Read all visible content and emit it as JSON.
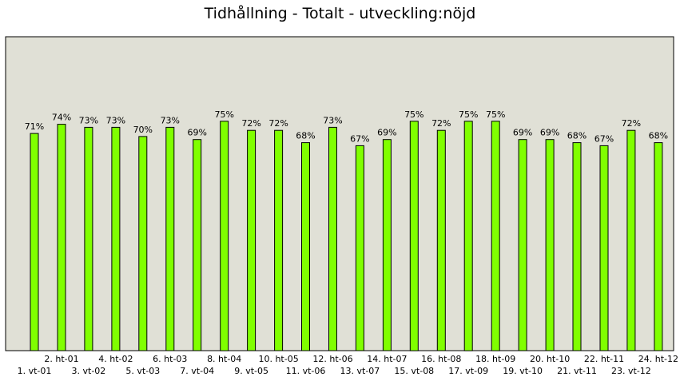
{
  "chart_data": {
    "type": "bar",
    "title": "Tidhållning - Totalt - utveckling:nöjd",
    "xlabel": "",
    "ylabel": "",
    "ylim": [
      0,
      100
    ],
    "grid": false,
    "legend": "none",
    "bar_color": "#80ff00",
    "plot_background": "#e0e0d6",
    "categories": [
      "1. vt-01",
      "2. ht-01",
      "3. vt-02",
      "4. ht-02",
      "5. vt-03",
      "6. ht-03",
      "7. vt-04",
      "8. ht-04",
      "9. vt-05",
      "10. ht-05",
      "11. vt-06",
      "12. ht-06",
      "13. vt-07",
      "14. ht-07",
      "15. vt-08",
      "16. ht-08",
      "17. vt-09",
      "18. ht-09",
      "19. vt-10",
      "20. ht-10",
      "21. vt-11",
      "22. ht-11",
      "23. vt-12",
      "24. ht-12"
    ],
    "values": [
      71,
      74,
      73,
      73,
      70,
      73,
      69,
      75,
      72,
      72,
      68,
      73,
      67,
      69,
      75,
      72,
      75,
      75,
      69,
      69,
      68,
      67,
      72,
      68
    ],
    "data_labels": [
      "71%",
      "74%",
      "73%",
      "73%",
      "70%",
      "73%",
      "69%",
      "75%",
      "72%",
      "72%",
      "68%",
      "73%",
      "67%",
      "69%",
      "75%",
      "72%",
      "75%",
      "75%",
      "69%",
      "69%",
      "68%",
      "67%",
      "72%",
      "68%"
    ]
  }
}
